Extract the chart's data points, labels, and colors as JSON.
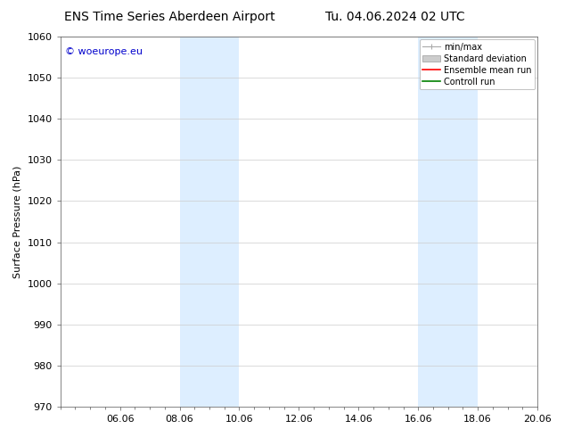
{
  "title_left": "ENS Time Series Aberdeen Airport",
  "title_right": "Tu. 04.06.2024 02 UTC",
  "ylabel": "Surface Pressure (hPa)",
  "ylim": [
    970,
    1060
  ],
  "yticks": [
    970,
    980,
    990,
    1000,
    1010,
    1020,
    1030,
    1040,
    1050,
    1060
  ],
  "xlim": [
    0,
    16
  ],
  "xtick_positions": [
    2,
    4,
    6,
    8,
    10,
    12,
    14,
    16
  ],
  "xtick_labels": [
    "06.06",
    "08.06",
    "10.06",
    "12.06",
    "14.06",
    "16.06",
    "18.06",
    "20.06"
  ],
  "shaded_bands": [
    {
      "x_start": 4,
      "x_end": 6
    },
    {
      "x_start": 12,
      "x_end": 14
    }
  ],
  "shaded_color": "#ddeeff",
  "watermark_text": "© woeurope.eu",
  "watermark_color": "#0000cc",
  "legend_labels": [
    "min/max",
    "Standard deviation",
    "Ensemble mean run",
    "Controll run"
  ],
  "legend_colors": [
    "#aaaaaa",
    "#cccccc",
    "#ff0000",
    "#008000"
  ],
  "bg_color": "#ffffff",
  "title_fontsize": 10,
  "ylabel_fontsize": 8,
  "tick_fontsize": 8,
  "legend_fontsize": 7,
  "watermark_fontsize": 8
}
